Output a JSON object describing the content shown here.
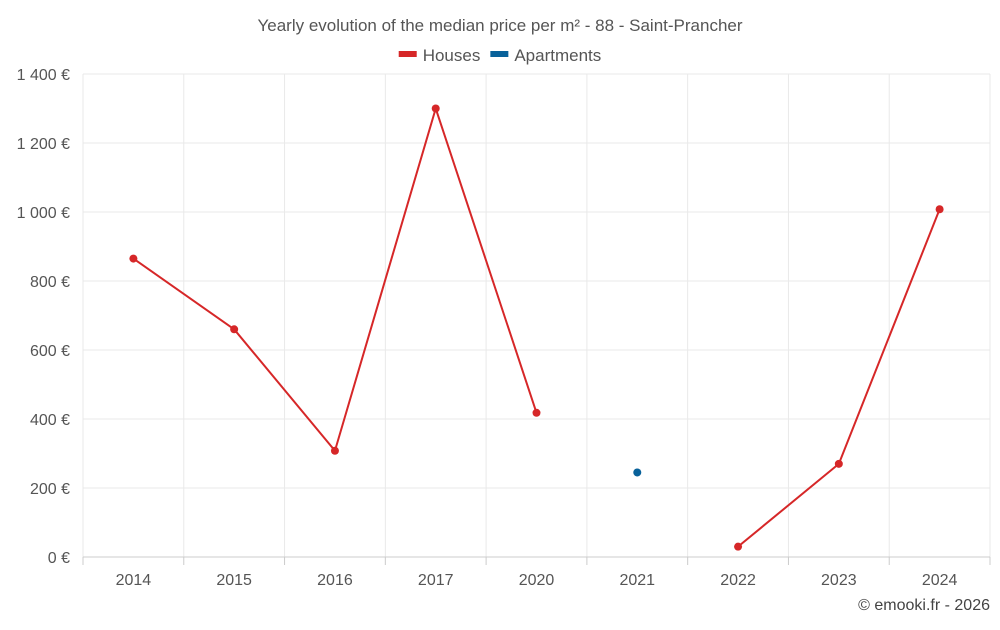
{
  "chart_data": {
    "type": "line",
    "title": "Yearly evolution of the median price per m² - 88 - Saint-Prancher",
    "categories": [
      "2014",
      "2015",
      "2016",
      "2017",
      "2020",
      "2021",
      "2022",
      "2023",
      "2024"
    ],
    "series": [
      {
        "name": "Houses",
        "color": "#d62728",
        "values": [
          865,
          660,
          308,
          1300,
          418,
          null,
          30,
          270,
          1008
        ]
      },
      {
        "name": "Apartments",
        "color": "#08619a",
        "values": [
          null,
          null,
          null,
          null,
          null,
          245,
          null,
          null,
          null
        ]
      }
    ],
    "ylim": [
      0,
      1400
    ],
    "yticks": [
      0,
      200,
      400,
      600,
      800,
      1000,
      1200,
      1400
    ],
    "ytick_labels": [
      "0 €",
      "200 €",
      "400 €",
      "600 €",
      "800 €",
      "1 000 €",
      "1 200 €",
      "1 400 €"
    ],
    "xlabel": "",
    "ylabel": "",
    "grid": true,
    "legend": "top-center"
  },
  "credit": "© emooki.fr - 2026"
}
